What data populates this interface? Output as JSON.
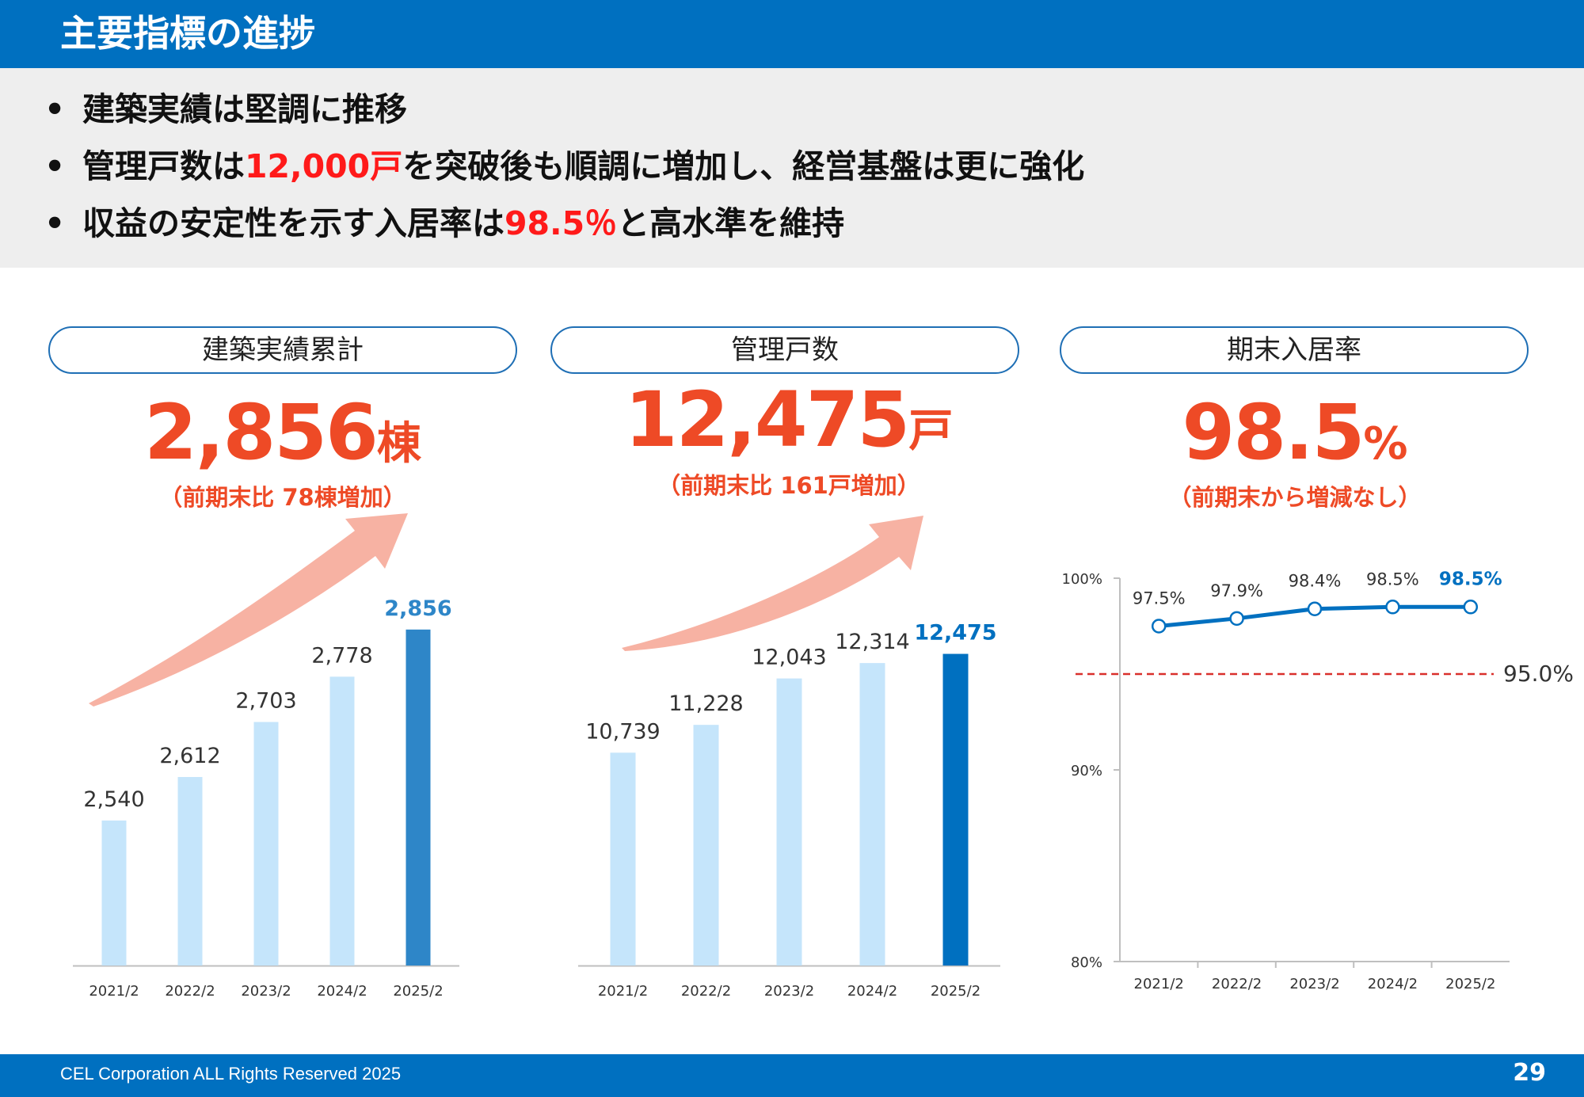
{
  "header": {
    "title": "主要指標の進捗"
  },
  "bullets": [
    {
      "parts": [
        "建築実績は堅調に推移"
      ],
      "highlight": []
    },
    {
      "parts": [
        "管理戸数は",
        "12,000戸",
        "を突破後も順調に増加し、経営基盤は更に強化"
      ],
      "highlight": [
        1
      ]
    },
    {
      "parts": [
        "収益の安定性を示す入居率は",
        "98.5％",
        "と高水準を維持"
      ],
      "highlight": [
        1
      ]
    }
  ],
  "bullet_marker": "•",
  "panels": {
    "construction": {
      "title": "建築実績累計",
      "value": "2,856",
      "unit": "棟",
      "change": "（前期末比 78棟増加）"
    },
    "managed": {
      "title": "管理戸数",
      "value": "12,475",
      "unit": "戸",
      "change": "（前期末比 161戸増加）"
    },
    "occupancy": {
      "title": "期末入居率",
      "value": "98.5",
      "unit": "%",
      "change": "（前期末から増減なし）"
    }
  },
  "colors": {
    "header_blue": "#0070c0",
    "highlight_red": "#ff1a1a",
    "kpi_orange": "#ee4a26",
    "bar_light": "#c5e5fb",
    "bar_dark_1": "#2e86c8",
    "bar_dark_2": "#0070c0",
    "arrow": "#f7b2a3",
    "threshold": "#d9302c"
  },
  "chart_data": [
    {
      "type": "bar",
      "categories": [
        "2021/2",
        "2022/2",
        "2023/2",
        "2024/2",
        "2025/2"
      ],
      "values": [
        2540,
        2612,
        2703,
        2778,
        2856
      ],
      "labels": [
        "2,540",
        "2,612",
        "2,703",
        "2,778",
        "2,856"
      ],
      "highlight_last": true,
      "ylim": [
        2300,
        2920
      ]
    },
    {
      "type": "bar",
      "categories": [
        "2021/2",
        "2022/2",
        "2023/2",
        "2024/2",
        "2025/2"
      ],
      "values": [
        10739,
        11228,
        12043,
        12314,
        12475
      ],
      "labels": [
        "10,739",
        "11,228",
        "12,043",
        "12,314",
        "12,475"
      ],
      "highlight_last": true,
      "ylim": [
        7000,
        12900
      ]
    },
    {
      "type": "line",
      "categories": [
        "2021/2",
        "2022/2",
        "2023/2",
        "2024/2",
        "2025/2"
      ],
      "values": [
        97.5,
        97.9,
        98.4,
        98.5,
        98.5
      ],
      "labels": [
        "97.5%",
        "97.9%",
        "98.4%",
        "98.5%",
        "98.5%"
      ],
      "highlight_last": true,
      "ylim": [
        80,
        100
      ],
      "yticks": [
        "80%",
        "90%",
        "100%"
      ],
      "reference_line": {
        "value": 95.0,
        "label": "95.0%"
      }
    }
  ],
  "footer": {
    "copyright": "CEL Corporation ALL Rights Reserved 2025",
    "page": "29"
  }
}
